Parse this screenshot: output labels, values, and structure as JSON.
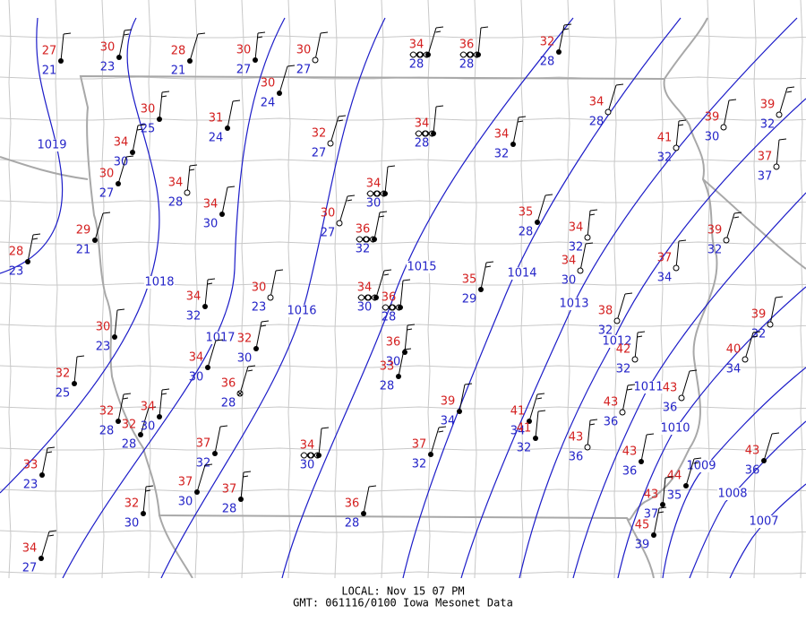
{
  "stations": [
    {
      "temp": 27,
      "dew": 21
    },
    {
      "temp": 30,
      "dew": 23
    },
    {
      "temp": 28,
      "dew": 21
    },
    {
      "temp": 30,
      "dew": 27
    },
    {
      "temp": 30,
      "dew": 27
    },
    {
      "temp": 34,
      "dew": 28
    },
    {
      "temp": 36,
      "dew": 28
    },
    {
      "temp": 32,
      "dew": 28
    },
    {
      "temp": 30,
      "dew": 24
    },
    {
      "temp": 30,
      "dew": 25
    },
    {
      "temp": 31,
      "dew": 24
    },
    {
      "temp": 32,
      "dew": 27
    },
    {
      "temp": 34,
      "dew": 28
    },
    {
      "temp": 34,
      "dew": 32
    },
    {
      "temp": 34,
      "dew": 28
    },
    {
      "temp": 41,
      "dew": 32
    },
    {
      "temp": 39,
      "dew": 30
    },
    {
      "temp": 39,
      "dew": 32
    },
    {
      "temp": 37,
      "dew": 37
    },
    {
      "temp": 34,
      "dew": 30
    },
    {
      "temp": 30,
      "dew": 27
    },
    {
      "temp": 34,
      "dew": 28
    },
    {
      "temp": 34,
      "dew": 30
    },
    {
      "temp": 30,
      "dew": 27
    },
    {
      "temp": 34,
      "dew": 30
    },
    {
      "temp": 36,
      "dew": 32
    },
    {
      "temp": 35,
      "dew": 28
    },
    {
      "temp": 34,
      "dew": 32
    },
    {
      "temp": 34,
      "dew": 30
    },
    {
      "temp": 39,
      "dew": 32
    },
    {
      "temp": 37,
      "dew": 34
    },
    {
      "temp": 28,
      "dew": 23
    },
    {
      "temp": 29,
      "dew": 21
    },
    {
      "temp": 34,
      "dew": 32
    },
    {
      "temp": 30,
      "dew": 23
    },
    {
      "temp": 34,
      "dew": 30
    },
    {
      "temp": 36,
      "dew": 28
    },
    {
      "temp": 35,
      "dew": 29
    },
    {
      "temp": 38,
      "dew": 32
    },
    {
      "temp": 42,
      "dew": 32
    },
    {
      "temp": 39,
      "dew": 32
    },
    {
      "temp": 40,
      "dew": 34
    },
    {
      "temp": 30,
      "dew": 23
    },
    {
      "temp": 32,
      "dew": 30
    },
    {
      "temp": 34,
      "dew": 30
    },
    {
      "temp": 36,
      "dew": 30
    },
    {
      "temp": 33,
      "dew": 28
    },
    {
      "temp": 36,
      "dew": 28
    },
    {
      "temp": 32,
      "dew": 25
    },
    {
      "temp": 32,
      "dew": 28
    },
    {
      "temp": 32,
      "dew": 28
    },
    {
      "temp": 34,
      "dew": 30
    },
    {
      "temp": 39,
      "dew": 34
    },
    {
      "temp": 41,
      "dew": 34
    },
    {
      "temp": 41,
      "dew": 32
    },
    {
      "temp": 43,
      "dew": 36
    },
    {
      "temp": 43,
      "dew": 36
    },
    {
      "temp": 43,
      "dew": 36
    },
    {
      "temp": 37,
      "dew": 32
    },
    {
      "temp": 37,
      "dew": 32
    },
    {
      "temp": 34,
      "dew": 30
    },
    {
      "temp": 33,
      "dew": 23
    },
    {
      "temp": 37,
      "dew": 30
    },
    {
      "temp": 37,
      "dew": 28
    },
    {
      "temp": 43,
      "dew": 36
    },
    {
      "temp": 44,
      "dew": 35
    },
    {
      "temp": 43,
      "dew": 37
    },
    {
      "temp": 45,
      "dew": 39
    },
    {
      "temp": 43,
      "dew": 36
    },
    {
      "temp": 32,
      "dew": 30
    },
    {
      "temp": 36,
      "dew": 28
    },
    {
      "temp": 34,
      "dew": 27
    }
  ],
  "isobars": [
    1019,
    1018,
    1017,
    1016,
    1015,
    1014,
    1013,
    1012,
    1011,
    1010,
    1009,
    1008,
    1007
  ],
  "footer": {
    "local": "LOCAL: Nov 15 07 PM",
    "gmt": "GMT: 061116/0100 Iowa Mesonet Data"
  }
}
